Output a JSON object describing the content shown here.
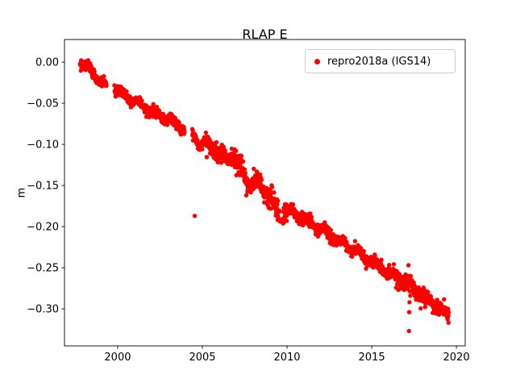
{
  "chart_data": {
    "type": "scatter",
    "title": "RLAP E",
    "xlabel": "",
    "ylabel": "m",
    "xlim": [
      1996.86,
      2020.52
    ],
    "ylim": [
      -0.345,
      0.0275
    ],
    "xticks": [
      2000,
      2005,
      2010,
      2015,
      2020
    ],
    "xtick_labels": [
      "2000",
      "2005",
      "2010",
      "2015",
      "2020"
    ],
    "yticks": [
      0.0,
      -0.05,
      -0.1,
      -0.15,
      -0.2,
      -0.25,
      -0.3
    ],
    "ytick_labels": [
      "0.00",
      "−0.05",
      "−0.10",
      "−0.15",
      "−0.20",
      "−0.25",
      "−0.30"
    ],
    "grid": false,
    "legend": {
      "label": "repro2018a (IGS14)",
      "position": "upper right",
      "marker": "dot",
      "marker_color": "#ff0000"
    },
    "series": [
      {
        "name": "repro2018a (IGS14)",
        "color": "#ff0000",
        "marker": "circle",
        "marker_radius_px": 2.7,
        "t_start": 1997.78,
        "t_end": 2019.55,
        "sample_step_years": 0.012,
        "seed": 20180101,
        "seasonal_amplitude": 0.0035,
        "trend_anchors": [
          [
            1997.78,
            -0.001
          ],
          [
            1998.1,
            -0.005
          ],
          [
            1998.45,
            -0.012
          ],
          [
            1998.8,
            -0.02
          ],
          [
            1999.15,
            -0.027
          ],
          [
            1999.9,
            -0.033
          ],
          [
            2000.4,
            -0.04
          ],
          [
            2000.95,
            -0.048
          ],
          [
            2001.5,
            -0.054
          ],
          [
            2002.2,
            -0.062
          ],
          [
            2003.0,
            -0.071
          ],
          [
            2003.9,
            -0.081
          ],
          [
            2004.55,
            -0.09
          ],
          [
            2004.9,
            -0.101
          ],
          [
            2005.3,
            -0.098
          ],
          [
            2005.9,
            -0.11
          ],
          [
            2006.4,
            -0.118
          ],
          [
            2006.75,
            -0.113
          ],
          [
            2007.1,
            -0.126
          ],
          [
            2007.5,
            -0.139
          ],
          [
            2007.9,
            -0.149
          ],
          [
            2008.3,
            -0.144
          ],
          [
            2008.7,
            -0.158
          ],
          [
            2009.1,
            -0.168
          ],
          [
            2009.45,
            -0.184
          ],
          [
            2009.62,
            -0.193
          ],
          [
            2009.9,
            -0.179
          ],
          [
            2010.4,
            -0.184
          ],
          [
            2011.0,
            -0.191
          ],
          [
            2012.0,
            -0.203
          ],
          [
            2013.0,
            -0.216
          ],
          [
            2014.0,
            -0.229
          ],
          [
            2015.0,
            -0.243
          ],
          [
            2016.0,
            -0.256
          ],
          [
            2017.0,
            -0.27
          ],
          [
            2018.0,
            -0.284
          ],
          [
            2019.0,
            -0.298
          ],
          [
            2019.55,
            -0.308
          ]
        ],
        "noise_windows": [
          [
            1997.7,
            2005.2,
            0.0032
          ],
          [
            2005.2,
            2010.0,
            0.0062
          ],
          [
            2010.0,
            2016.3,
            0.0035
          ],
          [
            2016.3,
            2018.2,
            0.0058
          ],
          [
            2018.2,
            2019.6,
            0.0035
          ]
        ],
        "gaps": [
          [
            1999.35,
            1999.8
          ],
          [
            2003.95,
            2004.4
          ],
          [
            2009.63,
            2009.76
          ]
        ],
        "outliers": [
          [
            2004.55,
            -0.187
          ],
          [
            2017.17,
            -0.247
          ],
          [
            2017.2,
            -0.327
          ],
          [
            2017.21,
            -0.304
          ],
          [
            2017.23,
            -0.292
          ]
        ]
      }
    ]
  }
}
